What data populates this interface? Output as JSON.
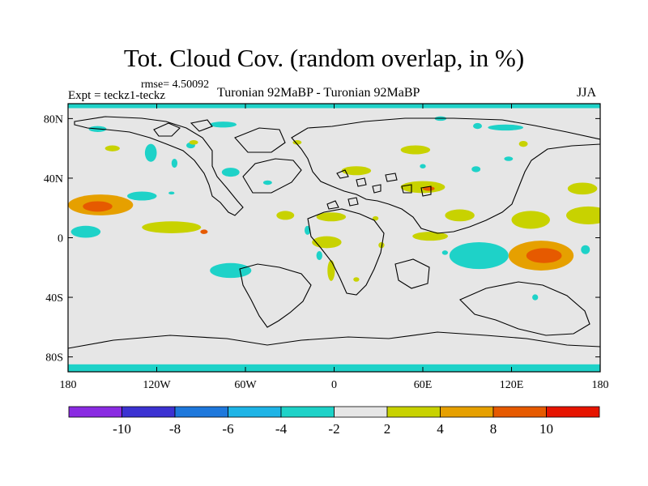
{
  "chart_data": {
    "type": "heatmap",
    "title": "Tot. Cloud Cov. (random overlap, in %)",
    "left_label": "Expt = teckz1-teckz",
    "rmse_label": "rmse= 4.50092",
    "center_label": "Turonian  92MaBP - Turonian  92MaBP",
    "right_label": "JJA",
    "x_ticks": [
      {
        "value": -180,
        "label": "180"
      },
      {
        "value": -120,
        "label": "120W"
      },
      {
        "value": -60,
        "label": "60W"
      },
      {
        "value": 0,
        "label": "0"
      },
      {
        "value": 60,
        "label": "60E"
      },
      {
        "value": 120,
        "label": "120E"
      },
      {
        "value": 180,
        "label": "180"
      }
    ],
    "y_ticks": [
      {
        "value": 80,
        "label": "80N"
      },
      {
        "value": 40,
        "label": "40N"
      },
      {
        "value": 0,
        "label": "0"
      },
      {
        "value": -40,
        "label": "40S"
      },
      {
        "value": -80,
        "label": "80S"
      }
    ],
    "xlim": [
      -180,
      180
    ],
    "ylim": [
      -90,
      90
    ],
    "colorbar": {
      "colors": [
        "#8a2be2",
        "#3c32d2",
        "#1e78dc",
        "#1eb4e6",
        "#1ed2c8",
        "#e6e6e6",
        "#c8d200",
        "#e6a000",
        "#e65a00",
        "#e61400"
      ],
      "labels": [
        "-10",
        "-8",
        "-6",
        "-4",
        "-2",
        "2",
        "4",
        "8",
        "10"
      ]
    },
    "anomalies": [
      {
        "lon": -158,
        "lat": 22,
        "rx": 22,
        "ry": 7,
        "level": 4
      },
      {
        "lon": -160,
        "lat": 21,
        "rx": 10,
        "ry": 3.5,
        "level": 8
      },
      {
        "lon": -110,
        "lat": 7,
        "rx": 20,
        "ry": 4,
        "level": 2
      },
      {
        "lon": -88,
        "lat": 4,
        "rx": 2.5,
        "ry": 1.5,
        "level": 8
      },
      {
        "lon": -168,
        "lat": 4,
        "rx": 10,
        "ry": 4,
        "level": -2
      },
      {
        "lon": -130,
        "lat": 28,
        "rx": 10,
        "ry": 3,
        "level": -2
      },
      {
        "lon": -70,
        "lat": -22,
        "rx": 14,
        "ry": 5,
        "level": -2
      },
      {
        "lon": -33,
        "lat": 15,
        "rx": 6,
        "ry": 3,
        "level": 2
      },
      {
        "lon": -2,
        "lat": 14,
        "rx": 10,
        "ry": 3,
        "level": 2
      },
      {
        "lon": -5,
        "lat": -3,
        "rx": 10,
        "ry": 4,
        "level": 2
      },
      {
        "lon": -2,
        "lat": -22,
        "rx": 2.5,
        "ry": 7,
        "level": 2
      },
      {
        "lon": -18,
        "lat": 5,
        "rx": 2,
        "ry": 3,
        "level": -2
      },
      {
        "lon": -10,
        "lat": -12,
        "rx": 2,
        "ry": 3,
        "level": -2
      },
      {
        "lon": 55,
        "lat": 59,
        "rx": 10,
        "ry": 3,
        "level": 2
      },
      {
        "lon": 15,
        "lat": 45,
        "rx": 10,
        "ry": 3,
        "level": 2
      },
      {
        "lon": 60,
        "lat": 34,
        "rx": 15,
        "ry": 4,
        "level": 2
      },
      {
        "lon": 64,
        "lat": 33,
        "rx": 4,
        "ry": 1.5,
        "level": 8
      },
      {
        "lon": 85,
        "lat": 15,
        "rx": 10,
        "ry": 4,
        "level": 2
      },
      {
        "lon": 65,
        "lat": 1,
        "rx": 12,
        "ry": 3,
        "level": 2
      },
      {
        "lon": 98,
        "lat": -12,
        "rx": 20,
        "ry": 9,
        "level": -2
      },
      {
        "lon": 140,
        "lat": -12,
        "rx": 22,
        "ry": 10,
        "level": 4
      },
      {
        "lon": 142,
        "lat": -12,
        "rx": 12,
        "ry": 5,
        "level": 8
      },
      {
        "lon": 133,
        "lat": 12,
        "rx": 13,
        "ry": 6,
        "level": 2
      },
      {
        "lon": 172,
        "lat": 15,
        "rx": 15,
        "ry": 6,
        "level": 2
      },
      {
        "lon": 168,
        "lat": 33,
        "rx": 10,
        "ry": 4,
        "level": 2
      },
      {
        "lon": -150,
        "lat": 60,
        "rx": 5,
        "ry": 2,
        "level": 2
      },
      {
        "lon": -160,
        "lat": 73,
        "rx": 6,
        "ry": 2,
        "level": -2
      },
      {
        "lon": -124,
        "lat": 57,
        "rx": 4,
        "ry": 6,
        "level": -2
      },
      {
        "lon": -108,
        "lat": 50,
        "rx": 2,
        "ry": 3,
        "level": -2
      },
      {
        "lon": -97,
        "lat": 62,
        "rx": 3,
        "ry": 2,
        "level": -2
      },
      {
        "lon": -70,
        "lat": 44,
        "rx": 6,
        "ry": 3,
        "level": -2
      },
      {
        "lon": -75,
        "lat": 76,
        "rx": 9,
        "ry": 2,
        "level": -2
      },
      {
        "lon": -95,
        "lat": 64,
        "rx": 3,
        "ry": 1.5,
        "level": 2
      },
      {
        "lon": 96,
        "lat": 46,
        "rx": 3,
        "ry": 2,
        "level": -2
      },
      {
        "lon": 116,
        "lat": 74,
        "rx": 12,
        "ry": 2,
        "level": -2
      },
      {
        "lon": 97,
        "lat": 75,
        "rx": 3,
        "ry": 2,
        "level": -2
      },
      {
        "lon": 128,
        "lat": 63,
        "rx": 3,
        "ry": 2,
        "level": 2
      },
      {
        "lon": 118,
        "lat": 53,
        "rx": 3,
        "ry": 1.5,
        "level": -2
      },
      {
        "lon": 72,
        "lat": 80,
        "rx": 4,
        "ry": 1.5,
        "level": -2
      },
      {
        "lon": -25,
        "lat": 64,
        "rx": 3,
        "ry": 1.5,
        "level": 2
      },
      {
        "lon": 60,
        "lat": 48,
        "rx": 2,
        "ry": 1.5,
        "level": -2
      },
      {
        "lon": 136,
        "lat": -40,
        "rx": 2,
        "ry": 2,
        "level": -2
      },
      {
        "lon": 170,
        "lat": -8,
        "rx": 3,
        "ry": 3,
        "level": -2
      },
      {
        "lon": 75,
        "lat": -10,
        "rx": 2,
        "ry": 1.5,
        "level": -2
      },
      {
        "lon": 32,
        "lat": -5,
        "rx": 2,
        "ry": 2,
        "level": 2
      },
      {
        "lon": 28,
        "lat": 13,
        "rx": 2,
        "ry": 1.5,
        "level": 2
      },
      {
        "lon": 15,
        "lat": -28,
        "rx": 2,
        "ry": 1.5,
        "level": 2
      },
      {
        "lon": -45,
        "lat": 37,
        "rx": 3,
        "ry": 1.5,
        "level": -2
      },
      {
        "lon": -110,
        "lat": 30,
        "rx": 2,
        "ry": 1,
        "level": -2
      }
    ],
    "polar_bands": [
      {
        "lat_from": 90,
        "lat_to": 87,
        "level": -2
      },
      {
        "lat_from": -85,
        "lat_to": -90,
        "level": -2
      }
    ]
  }
}
